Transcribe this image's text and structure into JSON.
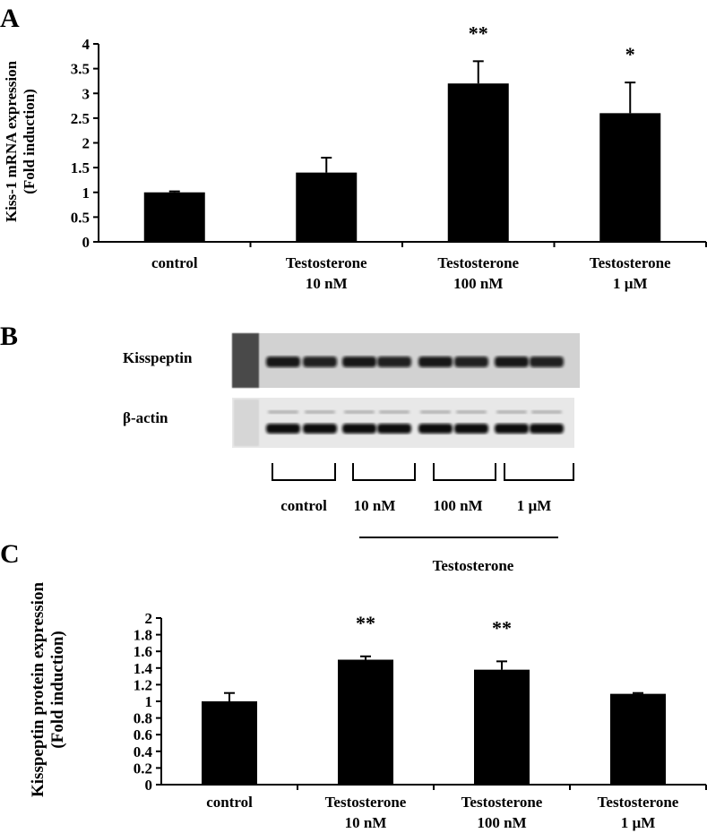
{
  "panels": {
    "a": "A",
    "b": "B",
    "c": "C"
  },
  "chart_data": [
    {
      "type": "bar",
      "panel": "A",
      "ylabel_line1": "Kiss-1 mRNA expression",
      "ylabel_line2": "(Fold induction)",
      "ylim": [
        0,
        4
      ],
      "yticks": [
        "0",
        "0.5",
        "1",
        "1.5",
        "2",
        "2.5",
        "3",
        "3.5",
        "4"
      ],
      "categories": [
        [
          "control",
          ""
        ],
        [
          "Testosterone",
          "10 nM"
        ],
        [
          "Testosterone",
          "100 nM"
        ],
        [
          "Testosterone",
          "1 µM"
        ]
      ],
      "values": [
        1.0,
        1.4,
        3.2,
        2.6
      ],
      "errors": [
        0.02,
        0.3,
        0.45,
        0.62
      ],
      "significance": [
        "",
        "",
        "**",
        "*"
      ],
      "color": "#000000"
    },
    {
      "type": "bar",
      "panel": "C",
      "ylabel_line1": "Kisspeptin  protein expression",
      "ylabel_line2": "(Fold induction)",
      "ylim": [
        0,
        2
      ],
      "yticks": [
        "0",
        "0.2",
        "0.4",
        "0.6",
        "0.8",
        "1",
        "1.2",
        "1.4",
        "1.6",
        "1.8",
        "2"
      ],
      "categories": [
        [
          "control",
          ""
        ],
        [
          "Testosterone",
          "10 nM"
        ],
        [
          "Testosterone",
          "100 nM"
        ],
        [
          "Testosterone",
          "1 µM"
        ]
      ],
      "values": [
        1.0,
        1.5,
        1.38,
        1.09
      ],
      "errors": [
        0.1,
        0.04,
        0.1,
        0.01
      ],
      "significance": [
        "",
        "**",
        "**",
        ""
      ],
      "color": "#000000"
    }
  ],
  "blot": {
    "rows": [
      "Kisspeptin",
      "β-actin"
    ],
    "groups": [
      "control",
      "10 nM",
      "100 nM",
      "1 µM"
    ],
    "treatment_label": "Testosterone"
  }
}
